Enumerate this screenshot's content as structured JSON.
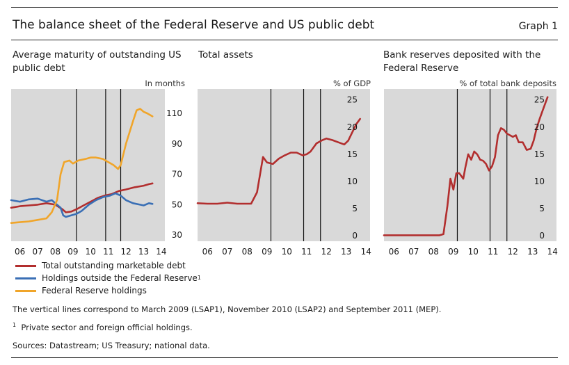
{
  "header": {
    "title": "The balance sheet of the Federal Reserve and US public debt",
    "graph_label": "Graph 1"
  },
  "panels": [
    {
      "title": "Average maturity of outstanding US public debt",
      "unit": "In months"
    },
    {
      "title": "Total assets",
      "unit": "% of GDP"
    },
    {
      "title": "Bank reserves deposited with the Federal Reserve",
      "unit": "% of total bank deposits"
    }
  ],
  "legend": {
    "items": [
      {
        "label": "Total outstanding marketable debt",
        "color": "#b22e2e"
      },
      {
        "label": "Holdings outside the Federal Reserve",
        "sup": "1",
        "color": "#3a6fb5"
      },
      {
        "label": "Federal Reserve holdings",
        "color": "#f0a52a"
      }
    ]
  },
  "notes": {
    "vertical_lines": "The vertical lines correspond to March 2009 (LSAP1), November 2010 (LSAP2) and September 2011 (MEP).",
    "footnote_marker": "1",
    "footnote": "Private sector and foreign official holdings.",
    "sources": "Sources: Datastream; US Treasury; national data."
  },
  "chart_data": [
    {
      "type": "line",
      "title": "Average maturity of outstanding US public debt",
      "ylabel": "In months",
      "x_ticks": [
        "06",
        "07",
        "08",
        "09",
        "10",
        "11",
        "12",
        "13",
        "14"
      ],
      "xlim": [
        2005.5,
        2014.2
      ],
      "ylim": [
        26,
        126
      ],
      "y_ticks": [
        30,
        50,
        70,
        90,
        110
      ],
      "grid": false,
      "vlines": [
        2009.2,
        2010.85,
        2011.7
      ],
      "series": [
        {
          "name": "Total outstanding marketable debt",
          "color": "#b22e2e",
          "x": [
            2005.5,
            2006.0,
            2006.5,
            2007.0,
            2007.5,
            2008.0,
            2008.4,
            2008.6,
            2008.9,
            2009.2,
            2009.6,
            2010.0,
            2010.4,
            2010.8,
            2011.2,
            2011.6,
            2012.0,
            2012.5,
            2013.0,
            2013.3,
            2013.5
          ],
          "y": [
            48,
            49,
            49.5,
            50,
            51,
            50,
            47,
            45,
            45.5,
            47,
            49.5,
            52,
            54.5,
            56,
            57,
            59,
            60,
            61.5,
            62.5,
            63.5,
            64
          ]
        },
        {
          "name": "Holdings outside the Federal Reserve",
          "color": "#3a6fb5",
          "x": [
            2005.5,
            2006.0,
            2006.5,
            2007.0,
            2007.5,
            2007.8,
            2008.0,
            2008.3,
            2008.45,
            2008.6,
            2008.9,
            2009.2,
            2009.5,
            2009.9,
            2010.3,
            2010.7,
            2011.1,
            2011.4,
            2011.7,
            2012.0,
            2012.4,
            2012.8,
            2013.0,
            2013.3,
            2013.5
          ],
          "y": [
            53,
            52,
            53.5,
            54,
            52,
            53,
            51,
            48,
            43,
            42,
            43,
            44,
            46,
            50,
            53,
            55,
            56,
            57.5,
            56,
            53,
            51,
            50,
            49.5,
            51,
            50.5
          ]
        },
        {
          "name": "Federal Reserve holdings",
          "color": "#f0a52a",
          "x": [
            2005.5,
            2006.0,
            2006.5,
            2007.0,
            2007.5,
            2007.8,
            2008.1,
            2008.3,
            2008.5,
            2008.8,
            2009.0,
            2009.3,
            2009.7,
            2010.0,
            2010.3,
            2010.7,
            2011.0,
            2011.3,
            2011.55,
            2011.7,
            2012.0,
            2012.4,
            2012.6,
            2012.8,
            2013.0,
            2013.2,
            2013.5
          ],
          "y": [
            38,
            38.5,
            39,
            40,
            41,
            45,
            53,
            70,
            78,
            79,
            77,
            79,
            80,
            81,
            81,
            80,
            78,
            76,
            73.5,
            76,
            90,
            105,
            112,
            113,
            111,
            110,
            108
          ]
        }
      ]
    },
    {
      "type": "line",
      "title": "Total assets",
      "ylabel": "% of GDP",
      "x_ticks": [
        "06",
        "07",
        "08",
        "09",
        "10",
        "11",
        "12",
        "13",
        "14"
      ],
      "xlim": [
        2005.5,
        2014.2
      ],
      "ylim": [
        -1,
        27
      ],
      "y_ticks": [
        0,
        5,
        10,
        15,
        20,
        25
      ],
      "grid": false,
      "vlines": [
        2009.2,
        2010.85,
        2011.7
      ],
      "series": [
        {
          "name": "Total assets",
          "color": "#b22e2e",
          "x": [
            2005.5,
            2006.0,
            2006.5,
            2007.0,
            2007.5,
            2008.0,
            2008.2,
            2008.5,
            2008.8,
            2009.0,
            2009.3,
            2009.6,
            2009.9,
            2010.2,
            2010.5,
            2010.8,
            2011.0,
            2011.2,
            2011.5,
            2011.8,
            2012.0,
            2012.3,
            2012.6,
            2012.9,
            2013.1,
            2013.3,
            2013.5,
            2013.7
          ],
          "y": [
            6,
            5.9,
            5.9,
            6.1,
            5.9,
            5.9,
            5.9,
            8,
            14.5,
            13.5,
            13.2,
            14.2,
            14.8,
            15.3,
            15.3,
            14.8,
            15,
            15.5,
            17,
            17.6,
            17.9,
            17.6,
            17.2,
            16.8,
            17.5,
            19,
            20.5,
            21.5
          ]
        }
      ]
    },
    {
      "type": "line",
      "title": "Bank reserves deposited with the Federal Reserve",
      "ylabel": "% of total bank deposits",
      "x_ticks": [
        "06",
        "07",
        "08",
        "09",
        "10",
        "11",
        "12",
        "13",
        "14"
      ],
      "xlim": [
        2005.5,
        2014.2
      ],
      "ylim": [
        -1,
        27
      ],
      "y_ticks": [
        0,
        5,
        10,
        15,
        20,
        25
      ],
      "grid": false,
      "vlines": [
        2009.2,
        2010.85,
        2011.7
      ],
      "series": [
        {
          "name": "Bank reserves",
          "color": "#b22e2e",
          "x": [
            2005.5,
            2006.0,
            2006.5,
            2007.0,
            2007.5,
            2008.0,
            2008.3,
            2008.5,
            2008.7,
            2008.85,
            2009.0,
            2009.15,
            2009.3,
            2009.5,
            2009.6,
            2009.75,
            2009.9,
            2010.05,
            2010.2,
            2010.35,
            2010.5,
            2010.65,
            2010.8,
            2010.95,
            2011.1,
            2011.25,
            2011.4,
            2011.55,
            2011.7,
            2011.85,
            2012.0,
            2012.15,
            2012.3,
            2012.5,
            2012.7,
            2012.9,
            2013.05,
            2013.2,
            2013.35,
            2013.5,
            2013.65,
            2013.75
          ],
          "y": [
            0.1,
            0.1,
            0.1,
            0.1,
            0.1,
            0.1,
            0.1,
            0.3,
            5.5,
            10.5,
            8.5,
            11.5,
            11.5,
            10.5,
            12.5,
            15,
            14,
            15.5,
            15,
            14,
            13.8,
            13.2,
            12,
            12.8,
            14.5,
            18.5,
            19.8,
            19.5,
            18.8,
            18.5,
            18.2,
            18.5,
            17.2,
            17.2,
            15.8,
            16,
            17.5,
            19.8,
            21.5,
            23,
            24.5,
            25.5
          ]
        }
      ]
    }
  ]
}
